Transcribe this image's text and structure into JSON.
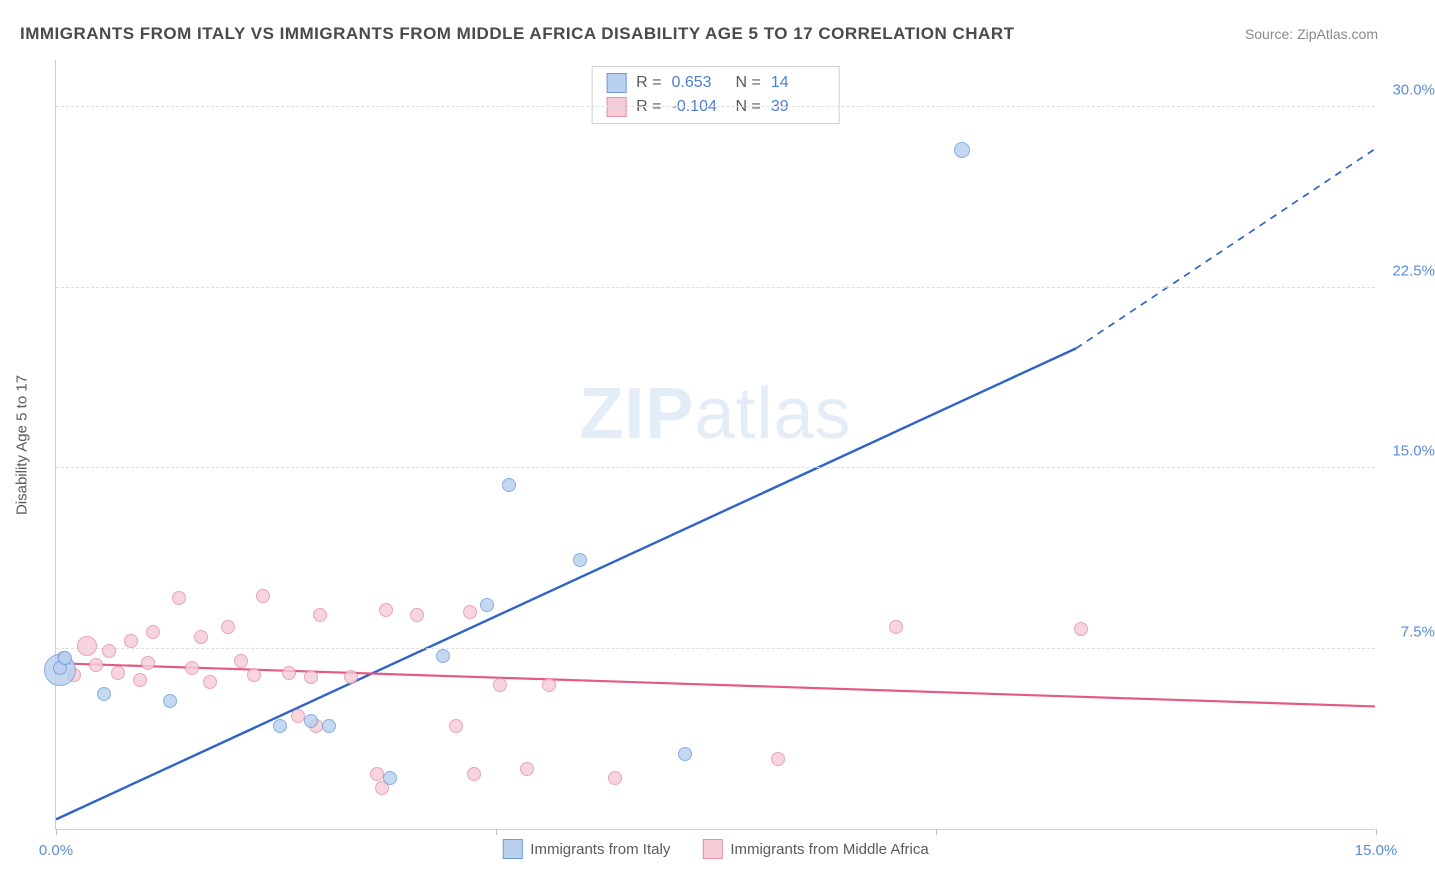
{
  "title": "IMMIGRANTS FROM ITALY VS IMMIGRANTS FROM MIDDLE AFRICA DISABILITY AGE 5 TO 17 CORRELATION CHART",
  "source": "Source: ZipAtlas.com",
  "y_axis_title": "Disability Age 5 to 17",
  "watermark": {
    "bold": "ZIP",
    "rest": "atlas"
  },
  "chart": {
    "type": "scatter",
    "xlim": [
      0,
      15
    ],
    "ylim": [
      0,
      32
    ],
    "x_ticks": [
      0,
      5,
      10,
      15
    ],
    "x_tick_labels": [
      "0.0%",
      "",
      "",
      "15.0%"
    ],
    "y_ticks": [
      7.5,
      15.0,
      22.5,
      30.0
    ],
    "y_tick_labels": [
      "7.5%",
      "15.0%",
      "22.5%",
      "30.0%"
    ],
    "background_color": "#ffffff",
    "grid_color": "#dedede",
    "series": [
      {
        "name": "Immigrants from Italy",
        "color_fill": "#b9d0ef",
        "color_stroke": "#6f9ddb",
        "r_value": "0.653",
        "n_value": "14",
        "trend": {
          "x1": 0,
          "y1": 0.4,
          "x2": 11.6,
          "y2": 20.0,
          "extend_x2": 15,
          "extend_y2": 28.3,
          "stroke": "#2f63c9",
          "width": 2.4
        },
        "points": [
          {
            "x": 0.05,
            "y": 6.6,
            "r": 16
          },
          {
            "x": 0.05,
            "y": 6.7,
            "r": 7
          },
          {
            "x": 0.1,
            "y": 7.1,
            "r": 7
          },
          {
            "x": 0.55,
            "y": 5.6,
            "r": 7
          },
          {
            "x": 1.3,
            "y": 5.3,
            "r": 7
          },
          {
            "x": 2.55,
            "y": 4.3,
            "r": 7
          },
          {
            "x": 2.9,
            "y": 4.5,
            "r": 7
          },
          {
            "x": 3.1,
            "y": 4.3,
            "r": 7
          },
          {
            "x": 3.8,
            "y": 2.1,
            "r": 7
          },
          {
            "x": 4.4,
            "y": 7.2,
            "r": 7
          },
          {
            "x": 4.9,
            "y": 9.3,
            "r": 7
          },
          {
            "x": 5.15,
            "y": 14.3,
            "r": 7
          },
          {
            "x": 5.95,
            "y": 11.2,
            "r": 7
          },
          {
            "x": 7.15,
            "y": 3.1,
            "r": 7
          },
          {
            "x": 10.3,
            "y": 28.2,
            "r": 8
          }
        ]
      },
      {
        "name": "Immigrants from Middle Africa",
        "color_fill": "#f6cdd7",
        "color_stroke": "#e591aa",
        "r_value": "-0.104",
        "n_value": "39",
        "trend": {
          "x1": 0,
          "y1": 6.9,
          "x2": 15,
          "y2": 5.1,
          "stroke": "#e35a84",
          "width": 2.2
        },
        "points": [
          {
            "x": 0.08,
            "y": 7.1,
            "r": 7
          },
          {
            "x": 0.2,
            "y": 6.4,
            "r": 7
          },
          {
            "x": 0.35,
            "y": 7.6,
            "r": 10
          },
          {
            "x": 0.45,
            "y": 6.8,
            "r": 7
          },
          {
            "x": 0.6,
            "y": 7.4,
            "r": 7
          },
          {
            "x": 0.7,
            "y": 6.5,
            "r": 7
          },
          {
            "x": 0.85,
            "y": 7.8,
            "r": 7
          },
          {
            "x": 0.95,
            "y": 6.2,
            "r": 7
          },
          {
            "x": 1.05,
            "y": 6.9,
            "r": 7
          },
          {
            "x": 1.1,
            "y": 8.2,
            "r": 7
          },
          {
            "x": 1.4,
            "y": 9.6,
            "r": 7
          },
          {
            "x": 1.55,
            "y": 6.7,
            "r": 7
          },
          {
            "x": 1.65,
            "y": 8.0,
            "r": 7
          },
          {
            "x": 1.75,
            "y": 6.1,
            "r": 7
          },
          {
            "x": 1.95,
            "y": 8.4,
            "r": 7
          },
          {
            "x": 2.1,
            "y": 7.0,
            "r": 7
          },
          {
            "x": 2.25,
            "y": 6.4,
            "r": 7
          },
          {
            "x": 2.35,
            "y": 9.7,
            "r": 7
          },
          {
            "x": 2.65,
            "y": 6.5,
            "r": 7
          },
          {
            "x": 2.75,
            "y": 4.7,
            "r": 7
          },
          {
            "x": 2.95,
            "y": 4.3,
            "r": 7
          },
          {
            "x": 2.9,
            "y": 6.3,
            "r": 7
          },
          {
            "x": 3.0,
            "y": 8.9,
            "r": 7
          },
          {
            "x": 3.35,
            "y": 6.3,
            "r": 7
          },
          {
            "x": 3.75,
            "y": 9.1,
            "r": 7
          },
          {
            "x": 3.65,
            "y": 2.3,
            "r": 7
          },
          {
            "x": 3.7,
            "y": 1.7,
            "r": 7
          },
          {
            "x": 4.1,
            "y": 8.9,
            "r": 7
          },
          {
            "x": 4.55,
            "y": 4.3,
            "r": 7
          },
          {
            "x": 4.7,
            "y": 9.0,
            "r": 7
          },
          {
            "x": 4.75,
            "y": 2.3,
            "r": 7
          },
          {
            "x": 5.05,
            "y": 6.0,
            "r": 7
          },
          {
            "x": 5.35,
            "y": 2.5,
            "r": 7
          },
          {
            "x": 5.6,
            "y": 6.0,
            "r": 7
          },
          {
            "x": 6.35,
            "y": 2.1,
            "r": 7
          },
          {
            "x": 8.2,
            "y": 2.9,
            "r": 7
          },
          {
            "x": 9.55,
            "y": 8.4,
            "r": 7
          },
          {
            "x": 11.65,
            "y": 8.3,
            "r": 7
          }
        ]
      }
    ]
  },
  "bottom_legend": [
    {
      "label": "Immigrants from Italy",
      "fill": "#b9d0ef",
      "stroke": "#6f9ddb"
    },
    {
      "label": "Immigrants from Middle Africa",
      "fill": "#f6cdd7",
      "stroke": "#e591aa"
    }
  ]
}
